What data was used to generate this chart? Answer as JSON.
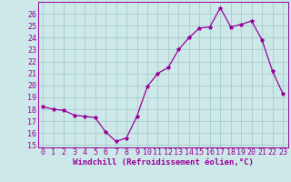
{
  "x": [
    0,
    1,
    2,
    3,
    4,
    5,
    6,
    7,
    8,
    9,
    10,
    11,
    12,
    13,
    14,
    15,
    16,
    17,
    18,
    19,
    20,
    21,
    22,
    23
  ],
  "y": [
    18.2,
    18.0,
    17.9,
    17.5,
    17.4,
    17.3,
    16.1,
    15.3,
    15.6,
    17.4,
    19.9,
    21.0,
    21.5,
    23.0,
    24.0,
    24.8,
    24.9,
    26.5,
    24.9,
    25.1,
    25.4,
    23.8,
    21.2,
    19.3
  ],
  "line_color": "#990099",
  "marker": "*",
  "marker_size": 3,
  "background_color": "#cce8e8",
  "grid_color": "#aacccc",
  "xlabel": "Windchill (Refroidissement éolien,°C)",
  "ylabel": "",
  "title": "",
  "xlim": [
    -0.5,
    23.5
  ],
  "ylim": [
    14.8,
    27.0
  ],
  "yticks": [
    15,
    16,
    17,
    18,
    19,
    20,
    21,
    22,
    23,
    24,
    25,
    26
  ],
  "xticks": [
    0,
    1,
    2,
    3,
    4,
    5,
    6,
    7,
    8,
    9,
    10,
    11,
    12,
    13,
    14,
    15,
    16,
    17,
    18,
    19,
    20,
    21,
    22,
    23
  ],
  "xtick_labels": [
    "0",
    "1",
    "2",
    "3",
    "4",
    "5",
    "6",
    "7",
    "8",
    "9",
    "10",
    "11",
    "12",
    "13",
    "14",
    "15",
    "16",
    "17",
    "18",
    "19",
    "20",
    "21",
    "22",
    "23"
  ],
  "label_fontsize": 6.5,
  "tick_fontsize": 6.0
}
